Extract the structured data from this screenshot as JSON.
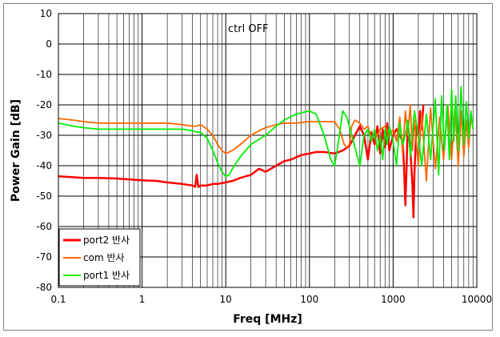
{
  "chart_data": {
    "type": "line",
    "title": "",
    "annotation": "ctrl OFF",
    "xlabel": "Freq [MHz]",
    "ylabel": "Power Gain [dB]",
    "x_scale": "log",
    "xlim": [
      0.1,
      10000
    ],
    "ylim": [
      -80,
      10
    ],
    "x_ticks": [
      "0.1",
      "1",
      "10",
      "100",
      "1000",
      "10000"
    ],
    "y_ticks": [
      "10",
      "0",
      "-10",
      "-20",
      "-30",
      "-40",
      "-50",
      "-60",
      "-70",
      "-80"
    ],
    "grid": true,
    "legend_position": "bottom-left",
    "series": [
      {
        "name": "port2 반사",
        "color": "#ff0000",
        "x": [
          0.1,
          0.15,
          0.2,
          0.3,
          0.5,
          0.7,
          1,
          1.5,
          2,
          3,
          4,
          4.3,
          4.5,
          4.7,
          5,
          6,
          7,
          8,
          10,
          12,
          15,
          20,
          25,
          30,
          40,
          50,
          60,
          80,
          100,
          120,
          150,
          200,
          250,
          300,
          350,
          400,
          450,
          500,
          550,
          600,
          650,
          700,
          750,
          800,
          850,
          900,
          1000,
          1100,
          1200,
          1300,
          1350,
          1400,
          1450,
          1500,
          1600,
          1700,
          1750,
          1800,
          1900,
          2000,
          2100,
          2200,
          2300
        ],
        "values": [
          -43.5,
          -43.8,
          -44,
          -44,
          -44.2,
          -44.5,
          -44.8,
          -45,
          -45.5,
          -46,
          -46.5,
          -47,
          -43,
          -47,
          -46.5,
          -46.5,
          -46,
          -46,
          -45.5,
          -45,
          -44,
          -43,
          -41,
          -42,
          -40,
          -38.5,
          -38,
          -36.5,
          -36,
          -35.5,
          -35.5,
          -36,
          -35,
          -33.5,
          -30,
          -27,
          -30,
          -38,
          -29,
          -33,
          -27,
          -36,
          -28,
          -34,
          -26,
          -35,
          -30,
          -28,
          -30,
          -32,
          -40,
          -53,
          -40,
          -26,
          -34,
          -46,
          -57,
          -42,
          -27,
          -30,
          -22,
          -28,
          -20
        ]
      },
      {
        "name": "com 반사",
        "color": "#ff6600",
        "x": [
          0.1,
          0.15,
          0.2,
          0.3,
          0.5,
          0.7,
          1,
          1.5,
          2,
          3,
          4,
          4.5,
          5,
          6,
          7,
          8,
          9,
          10,
          11,
          12,
          15,
          20,
          25,
          30,
          40,
          50,
          70,
          100,
          150,
          200,
          230,
          260,
          280,
          300,
          320,
          350,
          400,
          450,
          500,
          550,
          600,
          650,
          700,
          800,
          900,
          1000,
          1100,
          1200,
          1300,
          1400,
          1500,
          1600,
          1700,
          1800,
          2000,
          2200,
          2500,
          2800,
          3200,
          3600,
          4000,
          4500,
          5000,
          5500,
          6000,
          6500,
          7000,
          7500,
          8000,
          8500,
          9000
        ],
        "values": [
          -24.5,
          -25,
          -25.5,
          -26,
          -26,
          -26,
          -26,
          -26,
          -26,
          -26.5,
          -27,
          -27,
          -26.5,
          -28,
          -30,
          -33,
          -35,
          -36,
          -35.5,
          -35,
          -33,
          -30,
          -28.5,
          -27.5,
          -26.5,
          -26,
          -26,
          -25.5,
          -25.5,
          -25.5,
          -28,
          -33,
          -34,
          -33,
          -27,
          -25,
          -26,
          -28,
          -27,
          -31,
          -29,
          -30,
          -28,
          -27,
          -30,
          -28,
          -32,
          -24,
          -36,
          -22,
          -30,
          -20,
          -35,
          -25,
          -40,
          -23,
          -45,
          -21,
          -41,
          -24,
          -38,
          -20,
          -38,
          -21,
          -40,
          -22,
          -37,
          -25,
          -34,
          -24,
          -27
        ]
      },
      {
        "name": "port1 반사",
        "color": "#00ee00",
        "x": [
          0.1,
          0.15,
          0.2,
          0.3,
          0.5,
          0.7,
          1,
          1.5,
          2,
          3,
          4,
          4.5,
          5,
          6,
          7,
          8,
          9,
          10,
          11,
          12,
          15,
          20,
          30,
          40,
          50,
          70,
          100,
          120,
          150,
          180,
          200,
          220,
          250,
          280,
          300,
          350,
          400,
          450,
          500,
          550,
          600,
          650,
          700,
          750,
          800,
          850,
          900,
          1000,
          1100,
          1200,
          1300,
          1400,
          1500,
          1600,
          1800,
          2000,
          2200,
          2500,
          2800,
          3200,
          3500,
          3800,
          4100,
          4400,
          4700,
          5000,
          5300,
          5600,
          6000,
          6500,
          7000,
          7500,
          8000,
          8500,
          9000
        ],
        "values": [
          -26,
          -27,
          -27.5,
          -28,
          -28,
          -28,
          -28,
          -28,
          -28,
          -28,
          -28.5,
          -29,
          -29,
          -31,
          -35,
          -39,
          -42,
          -43.5,
          -43,
          -41,
          -37,
          -33,
          -30,
          -27,
          -25,
          -23,
          -22,
          -23,
          -30,
          -38,
          -40,
          -33,
          -22,
          -24,
          -27,
          -34,
          -40,
          -30,
          -28,
          -32,
          -28,
          -35,
          -30,
          -38,
          -28,
          -33,
          -27,
          -32,
          -40,
          -26,
          -33,
          -30,
          -25,
          -37,
          -22,
          -30,
          -40,
          -23,
          -38,
          -18,
          -43,
          -17,
          -35,
          -20,
          -38,
          -15,
          -32,
          -17,
          -35,
          -14,
          -33,
          -19,
          -31,
          -22,
          -28
        ]
      }
    ]
  }
}
